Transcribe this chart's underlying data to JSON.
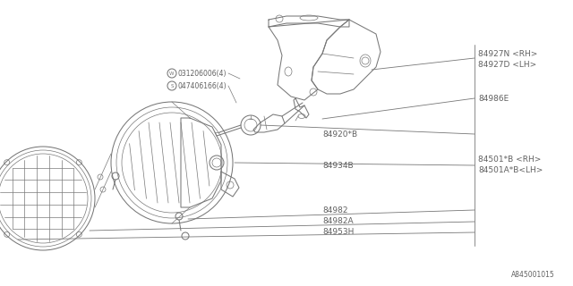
{
  "bg_color": "#ffffff",
  "dc": "#787878",
  "tc": "#606060",
  "fs": 6.5,
  "sfs": 5.5,
  "footnote": "A845001015",
  "lw_main": 0.75,
  "lw_thin": 0.5,
  "label_w": "031206006(4)",
  "label_s": "047406166(4)",
  "labels": {
    "84927N_RH": "84927N <RH>",
    "84927D_LH": "84927D <LH>",
    "84986E": "84986E",
    "84920B": "84920*B",
    "84934B": "84934B",
    "84501B_RH": "84501*B <RH>",
    "84501AB_LH": "84501A*B<LH>",
    "84982": "84982",
    "84982A": "84982A",
    "84953H": "84953H"
  }
}
